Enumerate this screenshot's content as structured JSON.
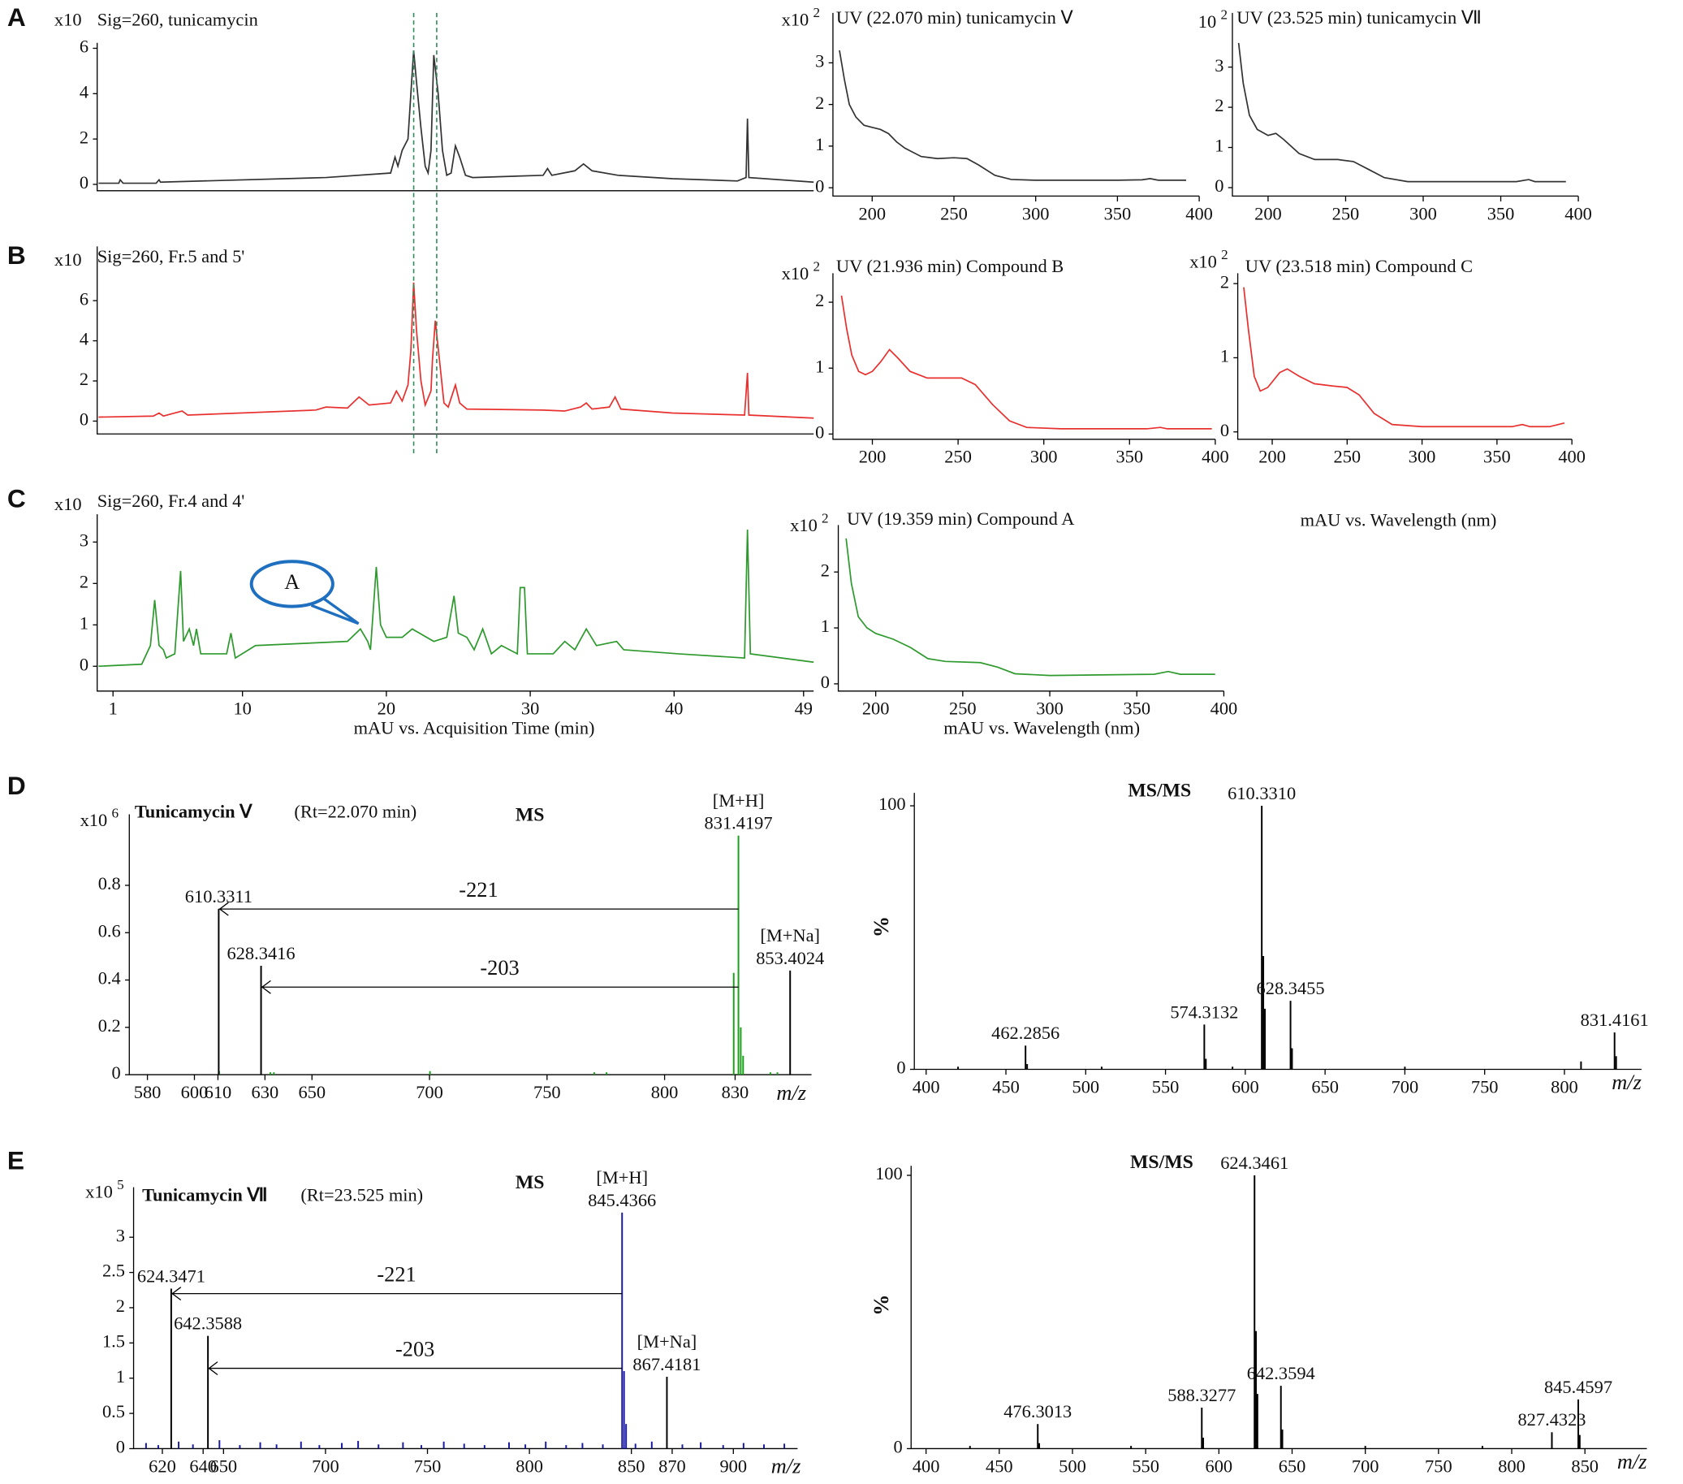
{
  "chart_data": [
    {
      "type": "line",
      "panel": "A",
      "title": "Sig=260,  tunicamycin",
      "scale_label": "x10",
      "color": "#333333",
      "x": [
        0,
        1.4,
        1.5,
        1.7,
        4.0,
        4.2,
        4.3,
        15.8,
        20.3,
        20.6,
        20.8,
        21.1,
        21.5,
        21.7,
        21.9,
        22.1,
        22.4,
        22.7,
        22.9,
        23.1,
        23.3,
        23.6,
        23.9,
        24.2,
        24.5,
        24.8,
        25.1,
        25.5,
        26.0,
        30.9,
        31.2,
        31.5,
        33.1,
        33.7,
        34.3,
        36.1,
        39.9,
        44.4,
        45.0,
        45.1,
        45.2,
        49.7
      ],
      "values": [
        0.05,
        0.05,
        0.2,
        0.05,
        0.05,
        0.2,
        0.1,
        0.3,
        0.5,
        1.2,
        0.8,
        1.5,
        2.0,
        4,
        5.9,
        4.5,
        2.5,
        0.8,
        0.5,
        1.5,
        5.7,
        4.0,
        1.5,
        0.4,
        0.5,
        1.7,
        1.2,
        0.4,
        0.3,
        0.4,
        0.7,
        0.4,
        0.6,
        0.9,
        0.6,
        0.4,
        0.25,
        0.15,
        0.3,
        2.9,
        0.3,
        0.1
      ],
      "markers": [
        21.9,
        23.5
      ],
      "marker_color": "#2e8b57",
      "xlim": [
        -0.1,
        49.7
      ],
      "ylim": [
        -0.28,
        6.24
      ],
      "yticks": [
        0,
        2,
        4,
        6
      ]
    },
    {
      "type": "line",
      "title": "UV (22.070 min) tunicamycin Ⅴ",
      "scale_label": "x10",
      "scale_exponent": 2,
      "color": "#333333",
      "x": [
        180,
        183,
        186,
        190,
        195,
        200,
        205,
        210,
        215,
        220,
        230,
        240,
        250,
        258,
        265,
        275,
        285,
        300,
        350,
        365,
        370,
        375,
        392
      ],
      "values": [
        3.3,
        2.6,
        2.0,
        1.7,
        1.5,
        1.45,
        1.4,
        1.3,
        1.1,
        0.95,
        0.75,
        0.7,
        0.72,
        0.7,
        0.55,
        0.3,
        0.2,
        0.18,
        0.18,
        0.19,
        0.22,
        0.18,
        0.18
      ],
      "xlim": [
        176,
        400
      ],
      "ylim": [
        -0.2,
        4.2
      ],
      "xticks": [
        200,
        250,
        300,
        350,
        400
      ],
      "yticks": [
        0,
        1,
        2,
        3
      ]
    },
    {
      "type": "line",
      "title": "UV (23.525 min) tunicamycin Ⅶ",
      "scale_label": "10",
      "scale_exponent": 2,
      "color": "#333333",
      "x": [
        181,
        184,
        188,
        193,
        200,
        205,
        210,
        220,
        230,
        245,
        255,
        265,
        275,
        290,
        360,
        368,
        372,
        392
      ],
      "values": [
        3.6,
        2.6,
        1.8,
        1.45,
        1.3,
        1.35,
        1.2,
        0.85,
        0.7,
        0.7,
        0.65,
        0.45,
        0.25,
        0.15,
        0.15,
        0.2,
        0.15,
        0.15
      ],
      "xlim": [
        177,
        400
      ],
      "ylim": [
        -0.21,
        4.35
      ],
      "xticks": [
        200,
        250,
        300,
        350,
        400
      ],
      "yticks": [
        0,
        1,
        2,
        3
      ]
    },
    {
      "type": "line",
      "panel": "B",
      "title": "Sig=260,  Fr.5 and 5'",
      "scale_label": "x10",
      "color": "#e8302f",
      "x": [
        0,
        3.8,
        4.2,
        4.5,
        5.8,
        6.2,
        15.1,
        15.8,
        17.3,
        18.1,
        18.8,
        20.3,
        20.7,
        21.1,
        21.5,
        21.7,
        21.9,
        22.1,
        22.4,
        22.7,
        23.1,
        23.2,
        23.4,
        23.7,
        24.0,
        24.3,
        24.8,
        25.1,
        25.6,
        30.9,
        32.4,
        33.5,
        33.9,
        34.3,
        35.5,
        35.9,
        36.3,
        39.9,
        44.9,
        45.1,
        45.2,
        49.7
      ],
      "values": [
        0.2,
        0.25,
        0.4,
        0.25,
        0.5,
        0.3,
        0.55,
        0.7,
        0.65,
        1.2,
        0.8,
        0.9,
        1.5,
        1.0,
        1.8,
        3.5,
        6.9,
        4.5,
        2.0,
        0.8,
        1.5,
        3.0,
        5.0,
        3.0,
        0.9,
        0.7,
        1.8,
        0.9,
        0.6,
        0.55,
        0.5,
        0.7,
        0.9,
        0.6,
        0.7,
        1.2,
        0.6,
        0.4,
        0.3,
        2.4,
        0.3,
        0.15
      ],
      "markers": [
        21.9,
        23.5
      ],
      "marker_color": "#2e8b57",
      "xlim": [
        -0.1,
        49.7
      ],
      "ylim": [
        -0.64,
        8.7
      ],
      "yticks": [
        0,
        2,
        4,
        6
      ]
    },
    {
      "type": "line",
      "title": "UV (21.936 min) Compound B",
      "scale_label": "x10",
      "scale_exponent": 2,
      "color": "#e8302f",
      "x": [
        182,
        185,
        188,
        192,
        196,
        200,
        205,
        210,
        215,
        222,
        232,
        245,
        252,
        260,
        270,
        280,
        290,
        310,
        360,
        368,
        372,
        398
      ],
      "values": [
        2.1,
        1.6,
        1.2,
        0.95,
        0.9,
        0.95,
        1.1,
        1.28,
        1.15,
        0.95,
        0.85,
        0.85,
        0.85,
        0.75,
        0.45,
        0.2,
        0.1,
        0.08,
        0.08,
        0.1,
        0.08,
        0.08
      ],
      "xlim": [
        177,
        400
      ],
      "ylim": [
        -0.08,
        2.44
      ],
      "xticks": [
        200,
        250,
        300,
        350,
        400
      ],
      "yticks": [
        0,
        1,
        2
      ]
    },
    {
      "type": "line",
      "title": "UV (23.518 min) Compound C",
      "scale_label": "x10",
      "scale_exponent": 2,
      "color": "#e8302f",
      "xlabel": "mAU vs. Wavelength (nm)",
      "x": [
        181,
        184,
        188,
        192,
        197,
        205,
        210,
        218,
        228,
        240,
        250,
        258,
        268,
        280,
        300,
        360,
        367,
        372,
        385,
        395
      ],
      "values": [
        1.95,
        1.4,
        0.75,
        0.55,
        0.6,
        0.8,
        0.85,
        0.75,
        0.65,
        0.62,
        0.6,
        0.5,
        0.25,
        0.1,
        0.07,
        0.07,
        0.1,
        0.07,
        0.07,
        0.12
      ],
      "xlim": [
        177,
        400
      ],
      "ylim": [
        -0.1,
        2.14
      ],
      "xticks": [
        200,
        250,
        300,
        350,
        400
      ],
      "yticks": [
        0,
        1,
        2
      ]
    },
    {
      "type": "line",
      "panel": "C",
      "title": "Sig=260,  Fr.4 and 4'",
      "scale_label": "x10",
      "color": "#2e9a2e",
      "xlabel": "mAU vs. Acquisition Time (min)",
      "callout": "A",
      "x": [
        0,
        3.0,
        3.6,
        3.9,
        4.2,
        4.5,
        4.7,
        5.3,
        5.7,
        5.9,
        6.3,
        6.6,
        6.8,
        7.1,
        7.5,
        8.9,
        9.2,
        9.5,
        10.9,
        17.3,
        18.2,
        18.7,
        18.9,
        19.3,
        19.6,
        20.0,
        21.1,
        21.8,
        23.3,
        24.2,
        24.7,
        25.0,
        25.6,
        26.1,
        26.7,
        27.3,
        28.0,
        29.1,
        29.3,
        29.6,
        29.8,
        31.6,
        32.4,
        33.1,
        33.9,
        34.6,
        36.0,
        36.5,
        40.3,
        44.9,
        45.1,
        45.3,
        49.7
      ],
      "values": [
        0,
        0.05,
        0.5,
        1.6,
        0.5,
        0.4,
        0.2,
        0.3,
        2.3,
        0.6,
        0.9,
        0.5,
        0.9,
        0.3,
        0.3,
        0.3,
        0.8,
        0.2,
        0.5,
        0.6,
        0.9,
        0.6,
        0.4,
        2.4,
        1.0,
        0.7,
        0.7,
        0.9,
        0.6,
        0.7,
        1.7,
        0.8,
        0.7,
        0.4,
        0.9,
        0.3,
        0.5,
        0.3,
        1.9,
        1.9,
        0.3,
        0.3,
        0.6,
        0.4,
        0.9,
        0.5,
        0.6,
        0.4,
        0.3,
        0.2,
        3.3,
        0.3,
        0.1
      ],
      "xlim": [
        -0.1,
        49.7
      ],
      "ylim": [
        -0.6,
        3.67
      ],
      "xticks": [
        1,
        10,
        20,
        30,
        40,
        49
      ],
      "yticks": [
        0,
        1,
        2,
        3
      ]
    },
    {
      "type": "line",
      "title": "UV (19.359 min) Compound A",
      "scale_label": "x10",
      "scale_exponent": 2,
      "color": "#2e9a2e",
      "xlabel": "mAU vs. Wavelength (nm)",
      "x": [
        183,
        186,
        190,
        195,
        200,
        210,
        220,
        230,
        240,
        260,
        270,
        280,
        300,
        360,
        368,
        375,
        395
      ],
      "values": [
        2.6,
        1.8,
        1.2,
        1.0,
        0.9,
        0.8,
        0.65,
        0.45,
        0.4,
        0.38,
        0.3,
        0.18,
        0.15,
        0.17,
        0.22,
        0.17,
        0.17
      ],
      "xlim": [
        178.5,
        400
      ],
      "ylim": [
        -0.13,
        2.84
      ],
      "xticks": [
        200,
        250,
        300,
        350,
        400
      ],
      "yticks": [
        0,
        1,
        2
      ]
    },
    {
      "type": "stem",
      "panel": "D",
      "title": "Tunicamycin  Ⅴ",
      "subtitle": "(Rt=22.070 min)",
      "spectrum_label": "MS",
      "scale_label": "x10",
      "scale_exponent": 6,
      "xlabel": "m/z",
      "series": [
        {
          "color": "#1aa01a",
          "x": [
            610.5,
            632.3,
            633.8,
            700.2,
            770.1,
            775.3,
            845,
            848
          ],
          "values": [
            0.015,
            0.01,
            0.01,
            0.015,
            0.01,
            0.01,
            0.01,
            0.01
          ]
        },
        {
          "color": "#1aa01a",
          "x": [
            829.4,
            831.4197,
            832.4,
            833.4
          ],
          "values": [
            0.43,
            1.01,
            0.2,
            0.08
          ],
          "x_labels": [
            null,
            "831.4197",
            null,
            null
          ],
          "tags": [
            null,
            "[M+H]",
            null,
            null
          ]
        },
        {
          "color": "#000000",
          "x": [
            610.3311,
            628.3416,
            853.4024
          ],
          "values": [
            0.7,
            0.46,
            0.44
          ],
          "x_labels": [
            "610.3311",
            "628.3416",
            "853.4024"
          ],
          "tags": [
            null,
            null,
            "[M+Na]"
          ]
        }
      ],
      "arrows": [
        {
          "x": [
            831.4197,
            610.3311
          ],
          "y": 0.7,
          "label": "-221"
        },
        {
          "x": [
            831.4197,
            628.3416
          ],
          "y": 0.37,
          "label": "-203"
        }
      ],
      "xlim": [
        572.3,
        862.5
      ],
      "ylim": [
        0,
        1.1
      ],
      "xticks": [
        580,
        600,
        610,
        630,
        650,
        700,
        750,
        800,
        830
      ],
      "yticks": [
        0,
        0.2,
        0.4,
        0.6,
        0.8
      ]
    },
    {
      "type": "stem",
      "spectrum_label": "MS/MS",
      "xlabel": "m/z",
      "ylabel": "%",
      "series": [
        {
          "color": "#000000",
          "x": [
            420,
            462.2856,
            463.3,
            510,
            574.3132,
            575.3,
            592,
            610.331,
            611.3,
            612.3,
            628.3455,
            629.3,
            700,
            810.4,
            831.4161,
            832.4
          ],
          "values": [
            1,
            9,
            2,
            1,
            17,
            4,
            1,
            100,
            43,
            23,
            26,
            8,
            1,
            3,
            14,
            5
          ],
          "x_labels": [
            null,
            "462.2856",
            null,
            null,
            "574.3132",
            null,
            null,
            "610.3310",
            null,
            null,
            "628.3455",
            null,
            null,
            null,
            "831.4161",
            null
          ]
        }
      ],
      "xlim": [
        392.6,
        848.3
      ],
      "ylim": [
        0,
        104.9
      ],
      "xticks": [
        400,
        450,
        500,
        550,
        600,
        650,
        700,
        750,
        800
      ],
      "yticks": [
        0,
        100
      ]
    },
    {
      "type": "stem",
      "panel": "E",
      "title": "Tunicamycin  Ⅶ",
      "subtitle": "(Rt=23.525 min)",
      "spectrum_label": "MS",
      "scale_label": "x10",
      "scale_exponent": 5,
      "xlabel": "m/z",
      "series": [
        {
          "color": "#1a1aa0",
          "x": [
            612,
            618,
            628,
            635,
            648,
            658,
            668,
            676,
            688,
            697,
            708,
            716,
            726,
            738,
            747,
            758,
            768,
            778,
            790,
            798,
            808,
            818,
            826,
            836,
            852,
            860,
            875,
            884,
            895,
            905,
            915,
            925
          ],
          "values": [
            0.08,
            0.05,
            0.1,
            0.06,
            0.12,
            0.05,
            0.09,
            0.06,
            0.1,
            0.05,
            0.08,
            0.11,
            0.06,
            0.09,
            0.05,
            0.1,
            0.07,
            0.05,
            0.09,
            0.06,
            0.1,
            0.05,
            0.08,
            0.06,
            0.07,
            0.1,
            0.06,
            0.09,
            0.05,
            0.08,
            0.06,
            0.07
          ]
        },
        {
          "color": "#1a1aa0",
          "x": [
            845.4366,
            846.4,
            847.4
          ],
          "values": [
            3.35,
            1.1,
            0.35
          ],
          "x_labels": [
            "845.4366",
            null,
            null
          ],
          "tags": [
            "[M+H]",
            null,
            null
          ]
        },
        {
          "color": "#000000",
          "x": [
            624.3471,
            642.3588,
            867.4181
          ],
          "values": [
            2.27,
            1.6,
            1.02
          ],
          "x_labels": [
            "624.3471",
            "642.3588",
            "867.4181"
          ],
          "tags": [
            null,
            null,
            "[M+Na]"
          ]
        }
      ],
      "arrows": [
        {
          "x": [
            845.4366,
            624.3471
          ],
          "y": 2.2,
          "label": "-221"
        },
        {
          "x": [
            845.4366,
            642.3588
          ],
          "y": 1.14,
          "label": "-203"
        }
      ],
      "xlim": [
        605.9,
        931.5
      ],
      "ylim": [
        0,
        3.71
      ],
      "xticks": [
        620,
        640,
        650,
        700,
        750,
        800,
        850,
        870,
        900
      ],
      "yticks": [
        0,
        0.5,
        1,
        1.5,
        2,
        2.5,
        3
      ]
    },
    {
      "type": "stem",
      "spectrum_label": "MS/MS",
      "xlabel": "m/z",
      "ylabel": "%",
      "series": [
        {
          "color": "#000000",
          "x": [
            430,
            476.3013,
            477.3,
            540,
            588.3277,
            589.3,
            624.3461,
            625.35,
            626.35,
            642.3594,
            643.36,
            700,
            780,
            827.4323,
            845.4597,
            846.46
          ],
          "values": [
            1,
            9,
            2,
            1,
            15,
            4,
            100,
            43,
            20,
            23,
            7,
            1,
            1,
            6,
            18,
            5
          ],
          "x_labels": [
            null,
            "476.3013",
            null,
            null,
            "588.3277",
            null,
            "624.3461",
            null,
            null,
            "642.3594",
            null,
            null,
            null,
            "827.4323",
            "845.4597",
            null
          ]
        }
      ],
      "xlim": [
        389.8,
        892.3
      ],
      "ylim": [
        0,
        103.5
      ],
      "xticks": [
        400,
        450,
        500,
        550,
        600,
        650,
        700,
        750,
        800,
        850
      ],
      "yticks": [
        0,
        100
      ]
    }
  ]
}
